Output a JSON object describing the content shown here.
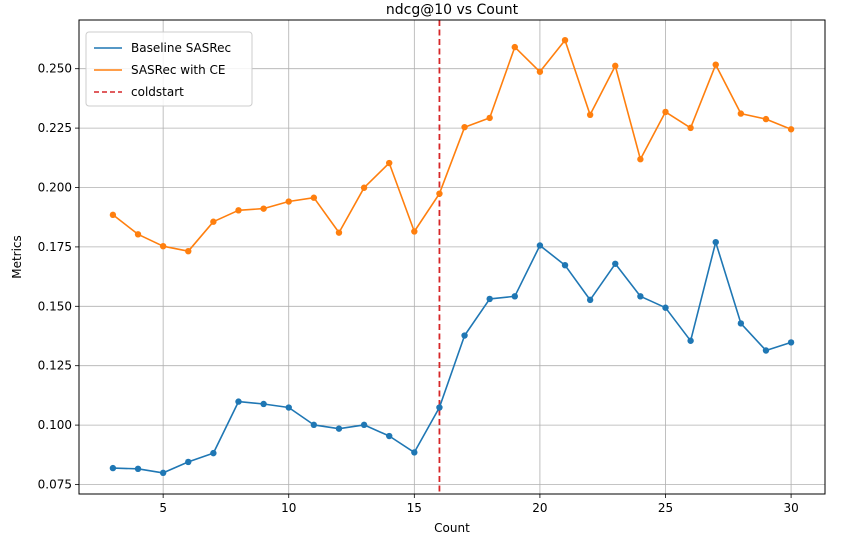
{
  "chart_data": {
    "type": "line",
    "title": "ndcg@10 vs Count",
    "xlabel": "Count",
    "ylabel": "Metrics",
    "xlim": [
      1.65,
      31.35
    ],
    "ylim": [
      0.071,
      0.2705
    ],
    "xticks": [
      5,
      10,
      15,
      20,
      25,
      30
    ],
    "yticks": [
      0.075,
      0.1,
      0.125,
      0.15,
      0.175,
      0.2,
      0.225,
      0.25
    ],
    "ytick_labels": [
      "0.075",
      "0.100",
      "0.125",
      "0.150",
      "0.175",
      "0.200",
      "0.225",
      "0.250"
    ],
    "grid": true,
    "legend_position": "top-left",
    "x": [
      3,
      4,
      5,
      6,
      7,
      8,
      9,
      10,
      11,
      12,
      13,
      14,
      15,
      16,
      17,
      18,
      19,
      20,
      21,
      22,
      23,
      24,
      25,
      26,
      27,
      28,
      29,
      30
    ],
    "series": [
      {
        "name": "Baseline SASRec",
        "color": "#1f77b4",
        "values": [
          0.0819,
          0.0816,
          0.0799,
          0.0845,
          0.0882,
          0.1099,
          0.1089,
          0.1074,
          0.1001,
          0.0985,
          0.1001,
          0.0954,
          0.0885,
          0.1074,
          0.1377,
          0.1531,
          0.1542,
          0.1756,
          0.1673,
          0.1527,
          0.1679,
          0.1542,
          0.1494,
          0.1355,
          0.177,
          0.1428,
          0.1314,
          0.1348
        ]
      },
      {
        "name": "SASRec with CE",
        "color": "#ff7f0e",
        "values": [
          0.1885,
          0.1803,
          0.1753,
          0.1732,
          0.1856,
          0.1904,
          0.1911,
          0.1941,
          0.1957,
          0.181,
          0.1999,
          0.2103,
          0.1815,
          0.1974,
          0.2254,
          0.2293,
          0.2591,
          0.2487,
          0.262,
          0.2306,
          0.2512,
          0.2119,
          0.2318,
          0.2251,
          0.2517,
          0.2311,
          0.2288,
          0.2245
        ]
      }
    ],
    "vline": {
      "name": "coldstart",
      "x": 16,
      "color": "#d62728"
    }
  }
}
